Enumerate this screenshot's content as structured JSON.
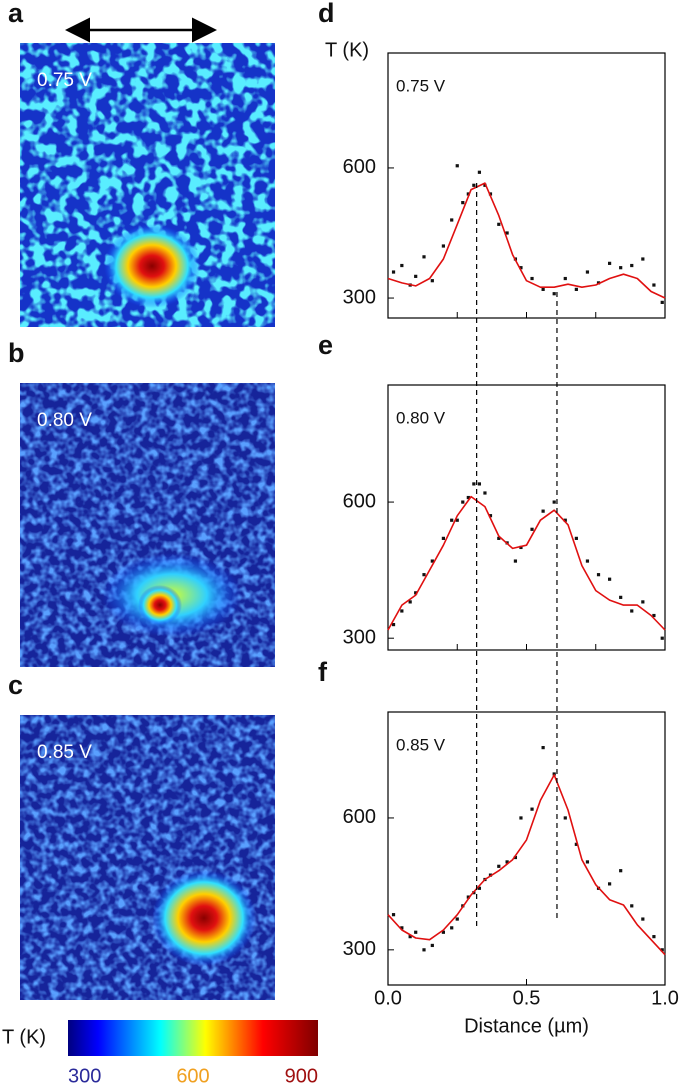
{
  "images": [
    {
      "panel": "a",
      "label": "0.75 V"
    },
    {
      "panel": "b",
      "label": "0.80 V"
    },
    {
      "panel": "c",
      "label": "0.85 V"
    }
  ],
  "colorbar": {
    "label": "T (K)",
    "lim": [
      300,
      900
    ],
    "ticks": [
      300,
      600,
      900
    ],
    "tick_colors": [
      "#2a2a9a",
      "#f0a020",
      "#a01010"
    ]
  },
  "guides_x": [
    0.32,
    0.61
  ],
  "chart_data": [
    {
      "type": "line",
      "panel": "d",
      "annotation": "0.75 V",
      "ylabel": "T (K)",
      "xlim": [
        0,
        1
      ],
      "xticks": [
        0,
        0.25,
        0.5,
        0.75,
        1
      ],
      "ylim": [
        254,
        865
      ],
      "yticks": [
        300,
        600
      ],
      "series": [
        {
          "style": "scatter",
          "color": "#111111",
          "x": [
            0.02,
            0.05,
            0.08,
            0.1,
            0.13,
            0.16,
            0.2,
            0.23,
            0.25,
            0.27,
            0.29,
            0.31,
            0.33,
            0.35,
            0.37,
            0.4,
            0.43,
            0.46,
            0.48,
            0.52,
            0.56,
            0.6,
            0.64,
            0.68,
            0.72,
            0.76,
            0.8,
            0.84,
            0.88,
            0.92,
            0.96,
            0.99
          ],
          "values": [
            360,
            375,
            330,
            350,
            395,
            340,
            420,
            480,
            605,
            520,
            540,
            560,
            590,
            560,
            540,
            470,
            450,
            390,
            370,
            345,
            320,
            310,
            345,
            320,
            360,
            335,
            380,
            370,
            375,
            390,
            330,
            290
          ]
        },
        {
          "style": "line",
          "color": "#e01010",
          "x": [
            0,
            0.05,
            0.1,
            0.15,
            0.2,
            0.25,
            0.3,
            0.35,
            0.4,
            0.45,
            0.5,
            0.55,
            0.6,
            0.65,
            0.7,
            0.75,
            0.8,
            0.85,
            0.9,
            0.95,
            1
          ],
          "values": [
            345,
            335,
            328,
            345,
            390,
            470,
            550,
            565,
            490,
            400,
            340,
            325,
            325,
            332,
            325,
            330,
            345,
            355,
            345,
            315,
            300
          ]
        }
      ]
    },
    {
      "type": "line",
      "panel": "e",
      "annotation": "0.80 V",
      "xlim": [
        0,
        1
      ],
      "xticks": [
        0,
        0.25,
        0.5,
        0.75,
        1
      ],
      "ylim": [
        274,
        858
      ],
      "yticks": [
        300,
        600
      ],
      "series": [
        {
          "style": "scatter",
          "color": "#111111",
          "x": [
            0.02,
            0.05,
            0.08,
            0.1,
            0.13,
            0.16,
            0.2,
            0.23,
            0.25,
            0.27,
            0.29,
            0.31,
            0.33,
            0.35,
            0.37,
            0.4,
            0.43,
            0.46,
            0.48,
            0.52,
            0.56,
            0.6,
            0.64,
            0.68,
            0.72,
            0.76,
            0.8,
            0.84,
            0.88,
            0.92,
            0.96,
            0.99
          ],
          "values": [
            330,
            360,
            380,
            400,
            440,
            470,
            520,
            560,
            560,
            600,
            610,
            640,
            640,
            620,
            570,
            520,
            510,
            470,
            500,
            540,
            580,
            600,
            560,
            520,
            470,
            440,
            430,
            390,
            360,
            380,
            350,
            300
          ]
        },
        {
          "style": "line",
          "color": "#e01010",
          "x": [
            0,
            0.05,
            0.1,
            0.15,
            0.2,
            0.25,
            0.3,
            0.35,
            0.4,
            0.45,
            0.5,
            0.55,
            0.6,
            0.65,
            0.7,
            0.75,
            0.8,
            0.85,
            0.9,
            0.95,
            1
          ],
          "values": [
            318,
            373,
            395,
            450,
            505,
            570,
            612,
            590,
            525,
            498,
            505,
            560,
            582,
            550,
            460,
            405,
            384,
            373,
            373,
            350,
            318
          ]
        }
      ]
    },
    {
      "type": "line",
      "panel": "f",
      "annotation": "0.85 V",
      "xlabel": "Distance (µm)",
      "xlim": [
        0,
        1
      ],
      "xticks": [
        {
          "value": 0,
          "label": "0.0"
        },
        {
          "value": 0.5,
          "label": "0.5"
        },
        {
          "value": 1,
          "label": "1.0"
        }
      ],
      "ylim": [
        220,
        841
      ],
      "yticks": [
        300,
        600
      ],
      "series": [
        {
          "style": "scatter",
          "color": "#111111",
          "x": [
            0.02,
            0.05,
            0.08,
            0.1,
            0.13,
            0.16,
            0.2,
            0.23,
            0.25,
            0.27,
            0.29,
            0.31,
            0.33,
            0.35,
            0.37,
            0.4,
            0.43,
            0.46,
            0.48,
            0.52,
            0.56,
            0.6,
            0.64,
            0.68,
            0.72,
            0.76,
            0.8,
            0.84,
            0.88,
            0.92,
            0.96,
            0.99
          ],
          "values": [
            380,
            350,
            330,
            340,
            300,
            310,
            340,
            350,
            370,
            400,
            420,
            430,
            440,
            460,
            470,
            490,
            500,
            510,
            600,
            620,
            760,
            700,
            600,
            540,
            500,
            440,
            450,
            480,
            400,
            370,
            330,
            300
          ]
        },
        {
          "style": "line",
          "color": "#e01010",
          "x": [
            0,
            0.05,
            0.1,
            0.15,
            0.2,
            0.25,
            0.3,
            0.35,
            0.4,
            0.45,
            0.5,
            0.55,
            0.6,
            0.65,
            0.7,
            0.75,
            0.8,
            0.85,
            0.9,
            0.95,
            1
          ],
          "values": [
            380,
            345,
            327,
            323,
            345,
            380,
            425,
            460,
            480,
            505,
            550,
            640,
            698,
            618,
            505,
            448,
            414,
            402,
            357,
            323,
            289
          ]
        }
      ]
    }
  ]
}
